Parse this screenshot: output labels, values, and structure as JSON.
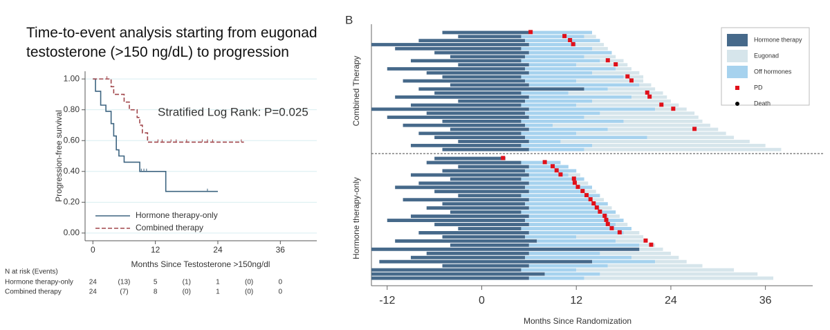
{
  "chart_data": [
    {
      "type": "step",
      "title": "Time-to-event analysis starting from eugonad testosterone (>150 ng/dL) to progression",
      "annotation": "Stratified Log Rank: P=0.025",
      "xlabel": "Months Since Testosterone >150ng/dl",
      "ylabel": "Progression-free survival",
      "xlim": [
        -1.5,
        43
      ],
      "ylim": [
        -0.05,
        1.05
      ],
      "xticks": [
        0,
        12,
        24,
        36
      ],
      "yticks": [
        {
          "value": 0,
          "label": "0.00"
        },
        {
          "value": 0.2,
          "label": "0.20"
        },
        {
          "value": 0.4,
          "label": "0.40"
        },
        {
          "value": 0.6,
          "label": "0.60"
        },
        {
          "value": 0.8,
          "label": "0.80"
        },
        {
          "value": 1,
          "label": "1.00"
        }
      ],
      "grid": true,
      "series": [
        {
          "name": "Hormone therapy-only",
          "color": "#3d6480",
          "dashed": false,
          "x": [
            0,
            0.5,
            1.5,
            2.5,
            3.5,
            4,
            4.5,
            5,
            6,
            9,
            14,
            24
          ],
          "values": [
            1,
            0.92,
            0.83,
            0.79,
            0.71,
            0.63,
            0.54,
            0.5,
            0.46,
            0.4,
            0.27,
            0.27
          ],
          "censored": [
            9.3,
            9.8,
            10.3,
            22
          ]
        },
        {
          "name": "Combined therapy",
          "color": "#a0454a",
          "dashed": true,
          "x": [
            0,
            3.5,
            4,
            6,
            7,
            8.5,
            9,
            9.5,
            10.5,
            29
          ],
          "values": [
            1,
            0.95,
            0.9,
            0.85,
            0.8,
            0.75,
            0.7,
            0.65,
            0.59,
            0.59
          ],
          "censored": [
            2.7,
            12.5,
            13.3,
            15,
            16,
            18,
            21,
            22,
            23,
            28.5
          ]
        }
      ],
      "risk_table": {
        "title": "N at risk (Events)",
        "rows": [
          {
            "name": "Hormone therapy-only",
            "cells": [
              "24",
              "(13)",
              "5",
              "(1)",
              "1",
              "(0)",
              "0"
            ]
          },
          {
            "name": "Combined therapy",
            "cells": [
              "24",
              "(7)",
              "8",
              "(0)",
              "1",
              "(0)",
              "0"
            ]
          }
        ]
      }
    },
    {
      "type": "swimmer",
      "panel_label": "B",
      "xlabel": "Months Since Randomization",
      "xlim": [
        -14,
        42
      ],
      "xticks": [
        -12,
        0,
        12,
        24,
        36
      ],
      "groups": [
        "Combined Therapy",
        "Hormone therapy-only"
      ],
      "start": [
        [
          -5,
          -3,
          -8,
          -14,
          -11,
          -6,
          -4,
          -9,
          -3,
          -12,
          -7,
          -5,
          -10,
          -4,
          -8,
          -6,
          -11,
          -3,
          -9,
          -14,
          -7,
          -12,
          -5,
          -10,
          -4,
          -8,
          -6,
          -3,
          -9,
          -5
        ],
        [
          -6,
          -7,
          -3,
          -5,
          -9,
          -4,
          -8,
          -11,
          -6,
          -3,
          -10,
          -5,
          -7,
          -4,
          -9,
          -12,
          -6,
          -3,
          -8,
          -5,
          -11,
          -4,
          -14,
          -7,
          -9,
          -13,
          -5,
          -14,
          -14,
          -14
        ]
      ],
      "series": [
        {
          "name": "Hormone therapy",
          "color": "#46698a",
          "values": [
            [
              11,
              8,
              13.5,
              20,
              16,
              12,
              9.5,
              14,
              9,
              17.5,
              13,
              10,
              15.5,
              10,
              21,
              11,
              17,
              8.5,
              14,
              20,
              12.5,
              18,
              10,
              15.5,
              10,
              13,
              11.5,
              9,
              14,
              11
            ],
            [
              9,
              12,
              9,
              10.5,
              15,
              9,
              14,
              16.5,
              12,
              8,
              16,
              10.5,
              13,
              9,
              15,
              17.5,
              12,
              8,
              14,
              10.5,
              18,
              10,
              34,
              13,
              14.5,
              27,
              11,
              19,
              22,
              20
            ]
          ]
        },
        {
          "name": "Eugonad",
          "color": "#d6e5eb",
          "values": [
            [
              0,
              1.5,
              0,
              3.5,
              2,
              0,
              4,
              3,
              6.5,
              2,
              6,
              2.5,
              8.5,
              1.5,
              6,
              12,
              4.5,
              10,
              13,
              4,
              12,
              14.5,
              10,
              20,
              14,
              19,
              11,
              24,
              22,
              25
            ],
            [
              0,
              0,
              0,
              0,
              1.5,
              0,
              1.5,
              0,
              1.5,
              0,
              1.5,
              0,
              1.5,
              0,
              1.5,
              0,
              1.5,
              0,
              2,
              8.5,
              4,
              2,
              3,
              9,
              6,
              4,
              12,
              20,
              20,
              24
            ]
          ]
        },
        {
          "name": "Off hormones",
          "color": "#a6d2ee",
          "values": [
            [
              8,
              8,
              9.5,
              6,
              9,
              10.5,
              7.5,
              10,
              6,
              11.5,
              8,
              13,
              6.5,
              14,
              3,
              6,
              13,
              8.5,
              7,
              16,
              9.5,
              7,
              13,
              3.5,
              10,
              7,
              15.5,
              4,
              9,
              7
            ],
            [
              0,
              5,
              5,
              6.5,
              5,
              8,
              6,
              8.5,
              7,
              10,
              8,
              10.5,
              9,
              12,
              10,
              12.5,
              11,
              14,
              12,
              6.5,
              10,
              14,
              0,
              9,
              13.5,
              8,
              10,
              7,
              7,
              7
            ]
          ]
        },
        {
          "name": "PD",
          "color": "#e0101a",
          "marker": "square",
          "values": [
            [
              6.2,
              10.5,
              11.2,
              11.6,
              null,
              null,
              null,
              16,
              17,
              null,
              null,
              18.5,
              19,
              null,
              null,
              21,
              21.3,
              null,
              22.8,
              24.3,
              null,
              null,
              null,
              null,
              27,
              null,
              null,
              null,
              null,
              null
            ],
            [
              2.7,
              8,
              9,
              9.5,
              10,
              11.7,
              11.8,
              12.2,
              12.8,
              13.3,
              13.8,
              14.2,
              14.6,
              15,
              15.6,
              15.8,
              16,
              16.5,
              17.5,
              null,
              20.8,
              21.5,
              null,
              null,
              null,
              null,
              null,
              null,
              null,
              null
            ]
          ]
        },
        {
          "name": "Death",
          "color": "#000000",
          "marker": "circle",
          "values": [
            [
              null,
              null,
              null,
              null,
              null,
              null,
              null,
              null,
              null,
              null,
              null,
              null,
              null,
              null,
              null,
              null,
              null,
              null,
              null,
              null,
              null,
              null,
              null,
              null,
              null,
              null,
              null,
              null,
              null,
              null
            ],
            [
              null,
              null,
              null,
              null,
              null,
              null,
              null,
              null,
              null,
              null,
              null,
              null,
              null,
              null,
              null,
              null,
              null,
              null,
              null,
              null,
              null,
              null,
              null,
              null,
              null,
              null,
              null,
              null,
              null,
              null
            ]
          ]
        }
      ]
    }
  ]
}
